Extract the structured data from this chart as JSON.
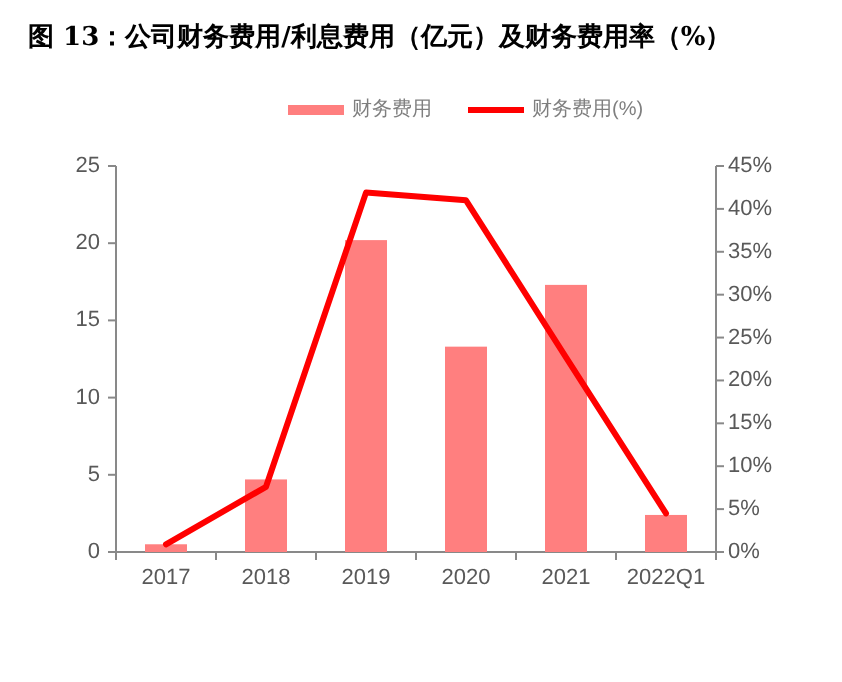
{
  "chart_data": {
    "type": "bar",
    "title": "图 13：公司财务费用/利息费用（亿元）及财务费用率（%）",
    "categories": [
      "2017",
      "2018",
      "2019",
      "2020",
      "2021",
      "2022Q1"
    ],
    "series": [
      {
        "name": "财务费用",
        "color": "#ff7f7f",
        "values": [
          0.5,
          4.7,
          20.2,
          13.3,
          17.3,
          2.4
        ]
      },
      {
        "name": "财务费用(%)",
        "type": "line",
        "axis": "y2",
        "color": "#ff0000",
        "values": [
          0.9,
          7.6,
          41.9,
          41.0,
          22.7,
          4.5
        ]
      }
    ],
    "ylim": [
      0,
      25
    ],
    "yticks": [
      0,
      5,
      10,
      15,
      20,
      25
    ],
    "y2lim": [
      0,
      45
    ],
    "y2ticks": [
      {
        "value": 0,
        "label": "0%"
      },
      {
        "value": 5,
        "label": "5%"
      },
      {
        "value": 10,
        "label": "10%"
      },
      {
        "value": 15,
        "label": "15%"
      },
      {
        "value": 20,
        "label": "20%"
      },
      {
        "value": 25,
        "label": "25%"
      },
      {
        "value": 30,
        "label": "30%"
      },
      {
        "value": 35,
        "label": "35%"
      },
      {
        "value": 40,
        "label": "40%"
      },
      {
        "value": 45,
        "label": "45%"
      }
    ],
    "legend": "top",
    "grid": false
  }
}
